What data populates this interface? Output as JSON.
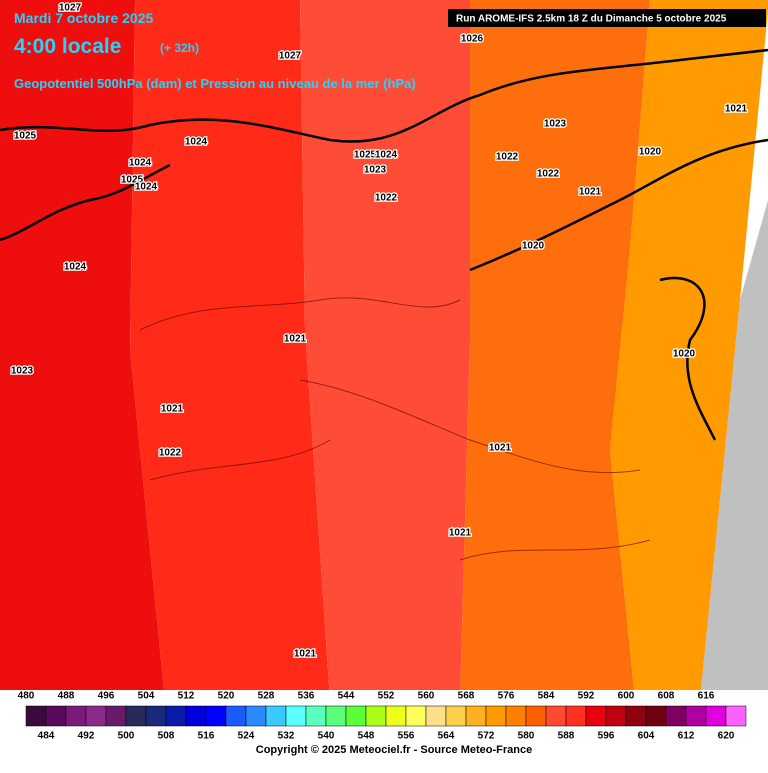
{
  "header": {
    "date": "Mardi 7 octobre 2025",
    "time": "4:00 locale",
    "lead": "(+ 32h)",
    "parameter": "Geopotentiel 500hPa (dam) et Pression au niveau de la mer (hPa)",
    "run": "Run AROME-IFS 2.5km 18 Z du Dimanche 5 octobre 2025"
  },
  "isobar_labels": [
    "1027",
    "1027",
    "1026",
    "1025",
    "1024",
    "1024",
    "1025",
    "1024",
    "1025",
    "1024",
    "1023",
    "1023",
    "1022",
    "1022",
    "1022",
    "1021",
    "1021",
    "1020",
    "1020",
    "1024",
    "1023",
    "1021",
    "1021",
    "1022",
    "1021",
    "1021",
    "1021",
    "1020"
  ],
  "colorbar": {
    "top_labels": [
      480,
      488,
      496,
      504,
      512,
      520,
      528,
      536,
      544,
      552,
      560,
      568,
      576,
      584,
      592,
      600,
      608,
      616
    ],
    "bottom_labels": [
      484,
      492,
      500,
      508,
      516,
      524,
      532,
      540,
      548,
      556,
      564,
      572,
      580,
      588,
      596,
      604,
      612,
      620
    ],
    "colors": [
      "#3a0a3a",
      "#5a0a5a",
      "#7a1a7a",
      "#8a2a8a",
      "#6a1a6a",
      "#2a2a5a",
      "#1a2a7a",
      "#0a1aaa",
      "#0000dd",
      "#0000ff",
      "#1a5aff",
      "#2a8aff",
      "#3acaff",
      "#5affff",
      "#5affc0",
      "#5aff7a",
      "#5aff3a",
      "#aaff1a",
      "#eeff1a",
      "#ffff5a",
      "#ffe08a",
      "#ffd04a",
      "#ffb020",
      "#ff9a00",
      "#ff8000",
      "#ff6000",
      "#ff4a30",
      "#ff3020",
      "#e80010",
      "#c00010",
      "#900010",
      "#700010",
      "#800060",
      "#b000a0",
      "#e000e0",
      "#ff60ff"
    ]
  },
  "footer": "Copyright © 2025 Meteociel.fr - Source Meteo-France"
}
